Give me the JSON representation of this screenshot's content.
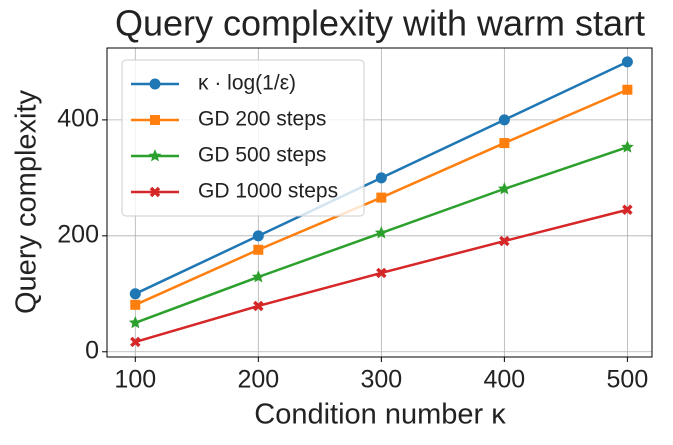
{
  "chart_data": {
    "type": "line",
    "title": "Query complexity with warm start",
    "x_label": "Condition number κ",
    "y_label": "Query complexity",
    "x": [
      100,
      200,
      300,
      400,
      500
    ],
    "series": [
      {
        "name": "κ · log(1/ε)",
        "color": "#1f77b4",
        "marker": "circle",
        "values": [
          100,
          200,
          300,
          400,
          500
        ]
      },
      {
        "name": "GD 200 steps",
        "color": "#ff7f0e",
        "marker": "square",
        "values": [
          81,
          176,
          266,
          360,
          452
        ]
      },
      {
        "name": "GD 500 steps",
        "color": "#2ca02c",
        "marker": "star",
        "values": [
          50,
          129,
          205,
          281,
          353
        ]
      },
      {
        "name": "GD 1000 steps",
        "color": "#d62728",
        "marker": "x",
        "values": [
          17,
          79,
          136,
          191,
          245
        ]
      }
    ],
    "xlim": [
      77,
      520
    ],
    "ylim": [
      -9,
      524
    ],
    "xticks": [
      100,
      200,
      300,
      400,
      500
    ],
    "yticks": [
      0,
      200,
      400
    ],
    "grid": true,
    "legend": "upper left"
  }
}
